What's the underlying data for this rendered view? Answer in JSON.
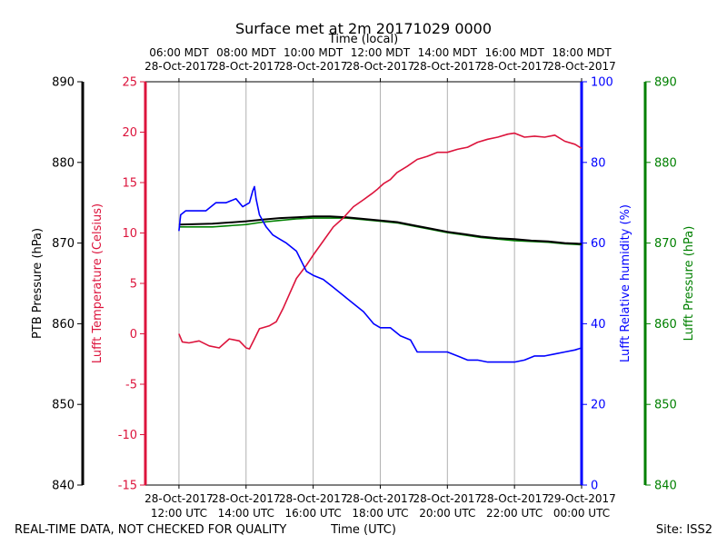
{
  "chart_data": {
    "type": "line",
    "title": "Surface met at 2m 20171029 0000",
    "top_axis_label": "Time (local)",
    "xlabel": "Time (UTC)",
    "footer_left": "REAL-TIME DATA, NOT CHECKED FOR QUALITY",
    "footer_right": "Site: ISS2",
    "x_range_hours": [
      11.0,
      24.0
    ],
    "grid": true,
    "bottom_ticks": [
      {
        "hour": 12,
        "line1": "28-Oct-2017",
        "line2": "12:00 UTC"
      },
      {
        "hour": 14,
        "line1": "28-Oct-2017",
        "line2": "14:00 UTC"
      },
      {
        "hour": 16,
        "line1": "28-Oct-2017",
        "line2": "16:00 UTC"
      },
      {
        "hour": 18,
        "line1": "28-Oct-2017",
        "line2": "18:00 UTC"
      },
      {
        "hour": 20,
        "line1": "28-Oct-2017",
        "line2": "20:00 UTC"
      },
      {
        "hour": 22,
        "line1": "28-Oct-2017",
        "line2": "22:00 UTC"
      },
      {
        "hour": 24,
        "line1": "29-Oct-2017",
        "line2": "00:00 UTC"
      }
    ],
    "top_ticks": [
      {
        "hour": 12,
        "line1": "06:00 MDT",
        "line2": "28-Oct-2017"
      },
      {
        "hour": 14,
        "line1": "08:00 MDT",
        "line2": "28-Oct-2017"
      },
      {
        "hour": 16,
        "line1": "10:00 MDT",
        "line2": "28-Oct-2017"
      },
      {
        "hour": 18,
        "line1": "12:00 MDT",
        "line2": "28-Oct-2017"
      },
      {
        "hour": 20,
        "line1": "14:00 MDT",
        "line2": "28-Oct-2017"
      },
      {
        "hour": 22,
        "line1": "16:00 MDT",
        "line2": "28-Oct-2017"
      },
      {
        "hour": 24,
        "line1": "18:00 MDT",
        "line2": "28-Oct-2017"
      }
    ],
    "axes": {
      "ptb_pressure": {
        "label": "PTB Pressure (hPa)",
        "range": [
          840,
          890
        ],
        "ticks": [
          840,
          850,
          860,
          870,
          880,
          890
        ],
        "color": "#000000"
      },
      "temperature": {
        "label": "Lufft Temperature (Celsius)",
        "range": [
          -15,
          25
        ],
        "ticks": [
          -15,
          -10,
          -5,
          0,
          5,
          10,
          15,
          20,
          25
        ],
        "color": "#dc143c"
      },
      "humidity": {
        "label": "Lufft Relative humidity (%)",
        "range": [
          0,
          100
        ],
        "ticks": [
          0,
          20,
          40,
          60,
          80,
          100
        ],
        "color": "#0000ff"
      },
      "lufft_pressure": {
        "label": "Lufft Pressure (hPa)",
        "range": [
          840,
          890
        ],
        "ticks": [
          840,
          850,
          860,
          870,
          880,
          890
        ],
        "color": "#008000"
      }
    },
    "series": [
      {
        "name": "Lufft Temperature",
        "axis": "temperature",
        "color": "#dc143c",
        "hours": [
          12.0,
          12.1,
          12.3,
          12.6,
          12.9,
          13.2,
          13.5,
          13.8,
          14.0,
          14.1,
          14.25,
          14.4,
          14.7,
          14.9,
          15.1,
          15.3,
          15.5,
          15.8,
          16.0,
          16.3,
          16.6,
          16.9,
          17.2,
          17.5,
          17.75,
          17.9,
          18.0,
          18.1,
          18.3,
          18.5,
          18.8,
          19.1,
          19.4,
          19.7,
          20.0,
          20.3,
          20.6,
          20.9,
          21.2,
          21.5,
          21.8,
          22.0,
          22.3,
          22.6,
          22.9,
          23.2,
          23.5,
          23.8,
          24.0
        ],
        "values": [
          0,
          -0.8,
          -0.9,
          -0.7,
          -1.2,
          -1.4,
          -0.5,
          -0.7,
          -1.4,
          -1.5,
          -0.5,
          0.5,
          0.8,
          1.2,
          2.5,
          4.0,
          5.5,
          6.8,
          7.8,
          9.2,
          10.6,
          11.5,
          12.6,
          13.3,
          13.9,
          14.3,
          14.6,
          14.9,
          15.3,
          16.0,
          16.6,
          17.3,
          17.6,
          18.0,
          18.0,
          18.3,
          18.5,
          19.0,
          19.3,
          19.5,
          19.8,
          19.9,
          19.5,
          19.6,
          19.5,
          19.7,
          19.1,
          18.8,
          18.4
        ]
      },
      {
        "name": "Lufft Relative humidity",
        "axis": "humidity",
        "color": "#0000ff",
        "hours": [
          12.0,
          12.05,
          12.2,
          12.5,
          12.8,
          13.1,
          13.4,
          13.7,
          13.9,
          14.1,
          14.2,
          14.25,
          14.3,
          14.4,
          14.6,
          14.8,
          15.0,
          15.2,
          15.5,
          15.8,
          16.0,
          16.3,
          16.6,
          16.9,
          17.2,
          17.5,
          17.8,
          18.0,
          18.3,
          18.6,
          18.9,
          19.1,
          19.4,
          19.7,
          20.0,
          20.3,
          20.6,
          20.9,
          21.2,
          21.5,
          21.8,
          22.0,
          22.3,
          22.6,
          22.9,
          23.2,
          23.5,
          23.8,
          24.0
        ],
        "values": [
          63,
          67,
          68,
          68,
          68,
          70,
          70,
          71,
          69,
          70,
          73,
          74,
          71,
          67,
          64,
          62,
          61,
          60,
          58,
          53,
          52,
          51,
          49,
          47,
          45,
          43,
          40,
          39,
          39,
          37,
          36,
          33,
          33,
          33,
          33,
          32,
          31,
          31,
          30.5,
          30.5,
          30.5,
          30.5,
          31,
          32,
          32,
          32.5,
          33,
          33.5,
          34
        ]
      },
      {
        "name": "PTB Pressure",
        "axis": "ptb_pressure",
        "color": "#000000",
        "hours": [
          12.0,
          13.0,
          14.0,
          14.5,
          15.0,
          15.5,
          16.0,
          16.5,
          17.0,
          17.5,
          18.0,
          18.5,
          19.0,
          19.5,
          20.0,
          20.5,
          21.0,
          21.5,
          22.0,
          22.5,
          23.0,
          23.5,
          24.0
        ],
        "values": [
          872.3,
          872.4,
          872.7,
          872.9,
          873.1,
          873.2,
          873.3,
          873.3,
          873.2,
          873.0,
          872.8,
          872.6,
          872.2,
          871.8,
          871.4,
          871.1,
          870.8,
          870.6,
          870.5,
          870.3,
          870.2,
          870.0,
          869.9
        ]
      },
      {
        "name": "Lufft Pressure",
        "axis": "lufft_pressure",
        "color": "#008000",
        "hours": [
          12.0,
          13.0,
          14.0,
          14.5,
          15.0,
          15.5,
          16.0,
          16.5,
          17.0,
          17.5,
          18.0,
          18.5,
          19.0,
          19.5,
          20.0,
          20.5,
          21.0,
          21.5,
          22.0,
          22.5,
          23.0,
          23.5,
          24.0
        ],
        "values": [
          872.0,
          872.0,
          872.3,
          872.6,
          872.8,
          873.0,
          873.1,
          873.1,
          873.1,
          872.9,
          872.7,
          872.5,
          872.1,
          871.7,
          871.3,
          871.0,
          870.7,
          870.5,
          870.3,
          870.2,
          870.1,
          869.9,
          869.8
        ]
      }
    ]
  }
}
